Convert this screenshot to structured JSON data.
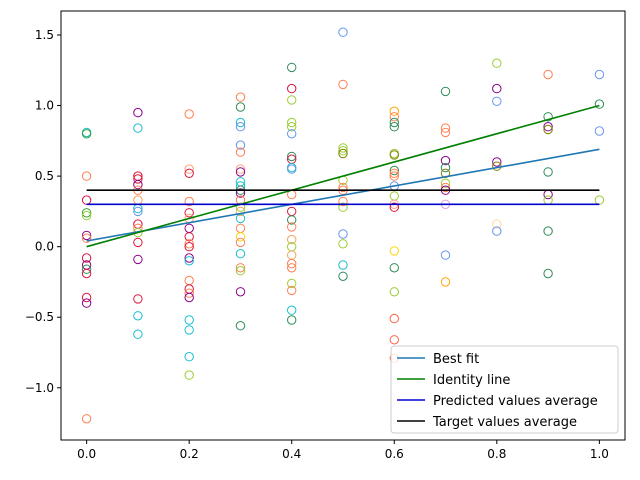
{
  "chart_data": {
    "type": "scatter",
    "xlim": [
      -0.05,
      1.05
    ],
    "ylim": [
      -1.37,
      1.67
    ],
    "x_ticks": [
      0.0,
      0.2,
      0.4,
      0.6,
      0.8,
      1.0
    ],
    "x_tick_labels": [
      "0.0",
      "0.2",
      "0.4",
      "0.6",
      "0.8",
      "1.0"
    ],
    "y_ticks": [
      -1.0,
      -0.5,
      0.0,
      0.5,
      1.0,
      1.5
    ],
    "y_tick_labels": [
      "−1.0",
      "−0.5",
      "0.0",
      "0.5",
      "1.0",
      "1.5"
    ],
    "grid": false,
    "legend_position": "lower-right",
    "scatter_points": [
      {
        "x": 0.0,
        "y": 0.81,
        "color": "#17becf"
      },
      {
        "x": 0.0,
        "y": 0.8,
        "color": "#2ca02c"
      },
      {
        "x": 0.0,
        "y": 0.5,
        "color": "#ff7f50"
      },
      {
        "x": 0.0,
        "y": 0.33,
        "color": "#dc143c"
      },
      {
        "x": 0.0,
        "y": 0.24,
        "color": "#2ca02c"
      },
      {
        "x": 0.0,
        "y": 0.22,
        "color": "#9acd32"
      },
      {
        "x": 0.0,
        "y": 0.08,
        "color": "#8b008b"
      },
      {
        "x": 0.0,
        "y": 0.06,
        "color": "#ff7f50"
      },
      {
        "x": 0.0,
        "y": -0.08,
        "color": "#dc143c"
      },
      {
        "x": 0.0,
        "y": -0.13,
        "color": "#8b008b"
      },
      {
        "x": 0.0,
        "y": -0.16,
        "color": "#2e8b57"
      },
      {
        "x": 0.0,
        "y": -0.19,
        "color": "#dc143c"
      },
      {
        "x": 0.0,
        "y": -0.36,
        "color": "#dc143c"
      },
      {
        "x": 0.0,
        "y": -0.4,
        "color": "#8b008b"
      },
      {
        "x": 0.0,
        "y": -1.22,
        "color": "#ff7f50"
      },
      {
        "x": 0.1,
        "y": 0.95,
        "color": "#8b008b"
      },
      {
        "x": 0.1,
        "y": 0.84,
        "color": "#17becf"
      },
      {
        "x": 0.1,
        "y": 0.5,
        "color": "#dc143c"
      },
      {
        "x": 0.1,
        "y": 0.48,
        "color": "#dc143c"
      },
      {
        "x": 0.1,
        "y": 0.44,
        "color": "#8b008b"
      },
      {
        "x": 0.1,
        "y": 0.4,
        "color": "#ff7f50"
      },
      {
        "x": 0.1,
        "y": 0.33,
        "color": "#f4a460"
      },
      {
        "x": 0.1,
        "y": 0.27,
        "color": "#17becf"
      },
      {
        "x": 0.1,
        "y": 0.25,
        "color": "#6495ed"
      },
      {
        "x": 0.1,
        "y": 0.16,
        "color": "#dc143c"
      },
      {
        "x": 0.1,
        "y": 0.13,
        "color": "#ff7f50"
      },
      {
        "x": 0.1,
        "y": 0.1,
        "color": "#9acd32"
      },
      {
        "x": 0.1,
        "y": 0.03,
        "color": "#dc143c"
      },
      {
        "x": 0.1,
        "y": -0.09,
        "color": "#8b008b"
      },
      {
        "x": 0.1,
        "y": -0.37,
        "color": "#dc143c"
      },
      {
        "x": 0.1,
        "y": -0.49,
        "color": "#17becf"
      },
      {
        "x": 0.1,
        "y": -0.62,
        "color": "#17becf"
      },
      {
        "x": 0.2,
        "y": 0.94,
        "color": "#ff7f50"
      },
      {
        "x": 0.2,
        "y": 0.55,
        "color": "#ffa07a"
      },
      {
        "x": 0.2,
        "y": 0.52,
        "color": "#dc143c"
      },
      {
        "x": 0.2,
        "y": 0.32,
        "color": "#ff7f50"
      },
      {
        "x": 0.2,
        "y": 0.24,
        "color": "#dc143c"
      },
      {
        "x": 0.2,
        "y": 0.2,
        "color": "#f4a460"
      },
      {
        "x": 0.2,
        "y": 0.13,
        "color": "#8b008b"
      },
      {
        "x": 0.2,
        "y": 0.07,
        "color": "#dc143c"
      },
      {
        "x": 0.2,
        "y": 0.02,
        "color": "#ff7f50"
      },
      {
        "x": 0.2,
        "y": 0.0,
        "color": "#dc143c"
      },
      {
        "x": 0.2,
        "y": -0.08,
        "color": "#8b008b"
      },
      {
        "x": 0.2,
        "y": -0.1,
        "color": "#17becf"
      },
      {
        "x": 0.2,
        "y": -0.24,
        "color": "#ff7f50"
      },
      {
        "x": 0.2,
        "y": -0.3,
        "color": "#dc143c"
      },
      {
        "x": 0.2,
        "y": -0.33,
        "color": "#ff7f50"
      },
      {
        "x": 0.2,
        "y": -0.36,
        "color": "#8b008b"
      },
      {
        "x": 0.2,
        "y": -0.52,
        "color": "#17becf"
      },
      {
        "x": 0.2,
        "y": -0.59,
        "color": "#17becf"
      },
      {
        "x": 0.2,
        "y": -0.78,
        "color": "#17becf"
      },
      {
        "x": 0.2,
        "y": -0.91,
        "color": "#9acd32"
      },
      {
        "x": 0.3,
        "y": 1.06,
        "color": "#ff7f50"
      },
      {
        "x": 0.3,
        "y": 0.99,
        "color": "#2e8b57"
      },
      {
        "x": 0.3,
        "y": 0.88,
        "color": "#17becf"
      },
      {
        "x": 0.3,
        "y": 0.85,
        "color": "#6495ed"
      },
      {
        "x": 0.3,
        "y": 0.72,
        "color": "#6495ed"
      },
      {
        "x": 0.3,
        "y": 0.67,
        "color": "#ff7f50"
      },
      {
        "x": 0.3,
        "y": 0.55,
        "color": "#ffa07a"
      },
      {
        "x": 0.3,
        "y": 0.53,
        "color": "#8b008b"
      },
      {
        "x": 0.3,
        "y": 0.46,
        "color": "#17becf"
      },
      {
        "x": 0.3,
        "y": 0.43,
        "color": "#17becf"
      },
      {
        "x": 0.3,
        "y": 0.4,
        "color": "#2e8b57"
      },
      {
        "x": 0.3,
        "y": 0.38,
        "color": "#8b008b"
      },
      {
        "x": 0.3,
        "y": 0.33,
        "color": "#ff7f50"
      },
      {
        "x": 0.3,
        "y": 0.28,
        "color": "#9acd32"
      },
      {
        "x": 0.3,
        "y": 0.25,
        "color": "#f4a460"
      },
      {
        "x": 0.3,
        "y": 0.2,
        "color": "#17becf"
      },
      {
        "x": 0.3,
        "y": 0.13,
        "color": "#ff7f50"
      },
      {
        "x": 0.3,
        "y": 0.07,
        "color": "#ffd700"
      },
      {
        "x": 0.3,
        "y": 0.03,
        "color": "#ff7f50"
      },
      {
        "x": 0.3,
        "y": -0.05,
        "color": "#17becf"
      },
      {
        "x": 0.3,
        "y": -0.15,
        "color": "#ff7f50"
      },
      {
        "x": 0.3,
        "y": -0.17,
        "color": "#9acd32"
      },
      {
        "x": 0.3,
        "y": -0.32,
        "color": "#8b008b"
      },
      {
        "x": 0.3,
        "y": -0.56,
        "color": "#2e8b57"
      },
      {
        "x": 0.4,
        "y": 1.27,
        "color": "#2e8b57"
      },
      {
        "x": 0.4,
        "y": 1.12,
        "color": "#dc143c"
      },
      {
        "x": 0.4,
        "y": 1.04,
        "color": "#9acd32"
      },
      {
        "x": 0.4,
        "y": 0.88,
        "color": "#9acd32"
      },
      {
        "x": 0.4,
        "y": 0.85,
        "color": "#9acd32"
      },
      {
        "x": 0.4,
        "y": 0.8,
        "color": "#6495ed"
      },
      {
        "x": 0.4,
        "y": 0.64,
        "color": "#2e8b57"
      },
      {
        "x": 0.4,
        "y": 0.62,
        "color": "#dc143c"
      },
      {
        "x": 0.4,
        "y": 0.56,
        "color": "#17becf"
      },
      {
        "x": 0.4,
        "y": 0.55,
        "color": "#6495ed"
      },
      {
        "x": 0.4,
        "y": 0.37,
        "color": "#ff7f50"
      },
      {
        "x": 0.4,
        "y": 0.25,
        "color": "#dc143c"
      },
      {
        "x": 0.4,
        "y": 0.19,
        "color": "#2e8b57"
      },
      {
        "x": 0.4,
        "y": 0.14,
        "color": "#ff7f50"
      },
      {
        "x": 0.4,
        "y": 0.05,
        "color": "#f4a460"
      },
      {
        "x": 0.4,
        "y": 0.0,
        "color": "#9acd32"
      },
      {
        "x": 0.4,
        "y": -0.06,
        "color": "#f4a460"
      },
      {
        "x": 0.4,
        "y": -0.12,
        "color": "#ff7f50"
      },
      {
        "x": 0.4,
        "y": -0.15,
        "color": "#ff7f50"
      },
      {
        "x": 0.4,
        "y": -0.26,
        "color": "#9acd32"
      },
      {
        "x": 0.4,
        "y": -0.31,
        "color": "#ff7f50"
      },
      {
        "x": 0.4,
        "y": -0.45,
        "color": "#17becf"
      },
      {
        "x": 0.4,
        "y": -0.52,
        "color": "#2e8b57"
      },
      {
        "x": 0.5,
        "y": 1.52,
        "color": "#6495ed"
      },
      {
        "x": 0.5,
        "y": 1.15,
        "color": "#ff7f50"
      },
      {
        "x": 0.5,
        "y": 0.7,
        "color": "#9acd32"
      },
      {
        "x": 0.5,
        "y": 0.68,
        "color": "#9acd32"
      },
      {
        "x": 0.5,
        "y": 0.66,
        "color": "#808000"
      },
      {
        "x": 0.5,
        "y": 0.47,
        "color": "#9acd32"
      },
      {
        "x": 0.5,
        "y": 0.42,
        "color": "#ff7f50"
      },
      {
        "x": 0.5,
        "y": 0.4,
        "color": "#ff7f50"
      },
      {
        "x": 0.5,
        "y": 0.32,
        "color": "#ff7f50"
      },
      {
        "x": 0.5,
        "y": 0.28,
        "color": "#9acd32"
      },
      {
        "x": 0.5,
        "y": 0.09,
        "color": "#6495ed"
      },
      {
        "x": 0.5,
        "y": 0.02,
        "color": "#9acd32"
      },
      {
        "x": 0.5,
        "y": -0.13,
        "color": "#17becf"
      },
      {
        "x": 0.5,
        "y": -0.21,
        "color": "#2e8b57"
      },
      {
        "x": 0.6,
        "y": 0.96,
        "color": "#ffa500"
      },
      {
        "x": 0.6,
        "y": 0.92,
        "color": "#ff7f50"
      },
      {
        "x": 0.6,
        "y": 0.88,
        "color": "#2e8b57"
      },
      {
        "x": 0.6,
        "y": 0.85,
        "color": "#2e8b57"
      },
      {
        "x": 0.6,
        "y": 0.66,
        "color": "#9acd32"
      },
      {
        "x": 0.6,
        "y": 0.65,
        "color": "#808000"
      },
      {
        "x": 0.6,
        "y": 0.54,
        "color": "#2e8b57"
      },
      {
        "x": 0.6,
        "y": 0.52,
        "color": "#ff7f50"
      },
      {
        "x": 0.6,
        "y": 0.5,
        "color": "#ff7f50"
      },
      {
        "x": 0.6,
        "y": 0.43,
        "color": "#6495ed"
      },
      {
        "x": 0.6,
        "y": 0.36,
        "color": "#9acd32"
      },
      {
        "x": 0.6,
        "y": 0.3,
        "color": "#ffa07a"
      },
      {
        "x": 0.6,
        "y": 0.28,
        "color": "#dc143c"
      },
      {
        "x": 0.6,
        "y": -0.03,
        "color": "#ffd700"
      },
      {
        "x": 0.6,
        "y": -0.15,
        "color": "#2e8b57"
      },
      {
        "x": 0.6,
        "y": -0.32,
        "color": "#9acd32"
      },
      {
        "x": 0.6,
        "y": -0.51,
        "color": "#ff6347"
      },
      {
        "x": 0.6,
        "y": -0.66,
        "color": "#ff6347"
      },
      {
        "x": 0.6,
        "y": -0.79,
        "color": "#ff6347"
      },
      {
        "x": 0.7,
        "y": 1.1,
        "color": "#2e8b57"
      },
      {
        "x": 0.7,
        "y": 0.84,
        "color": "#ff7f50"
      },
      {
        "x": 0.7,
        "y": 0.81,
        "color": "#ff7f50"
      },
      {
        "x": 0.7,
        "y": 0.61,
        "color": "#8b008b"
      },
      {
        "x": 0.7,
        "y": 0.56,
        "color": "#2e8b57"
      },
      {
        "x": 0.7,
        "y": 0.52,
        "color": "#808000"
      },
      {
        "x": 0.7,
        "y": 0.45,
        "color": "#9acd32"
      },
      {
        "x": 0.7,
        "y": 0.42,
        "color": "#ff7f50"
      },
      {
        "x": 0.7,
        "y": 0.4,
        "color": "#8b008b"
      },
      {
        "x": 0.7,
        "y": 0.3,
        "color": "#dda0dd"
      },
      {
        "x": 0.7,
        "y": -0.06,
        "color": "#6495ed"
      },
      {
        "x": 0.7,
        "y": -0.25,
        "color": "#ffa500"
      },
      {
        "x": 0.8,
        "y": 1.3,
        "color": "#9acd32"
      },
      {
        "x": 0.8,
        "y": 1.12,
        "color": "#8b008b"
      },
      {
        "x": 0.8,
        "y": 1.03,
        "color": "#6495ed"
      },
      {
        "x": 0.8,
        "y": 0.6,
        "color": "#8b008b"
      },
      {
        "x": 0.8,
        "y": 0.57,
        "color": "#808000"
      },
      {
        "x": 0.8,
        "y": 0.16,
        "color": "#ffd7a0"
      },
      {
        "x": 0.8,
        "y": 0.11,
        "color": "#6495ed"
      },
      {
        "x": 0.9,
        "y": 1.22,
        "color": "#ff7f50"
      },
      {
        "x": 0.9,
        "y": 0.92,
        "color": "#2e8b57"
      },
      {
        "x": 0.9,
        "y": 0.85,
        "color": "#8b008b"
      },
      {
        "x": 0.9,
        "y": 0.83,
        "color": "#808000"
      },
      {
        "x": 0.9,
        "y": 0.53,
        "color": "#2e8b57"
      },
      {
        "x": 0.9,
        "y": 0.37,
        "color": "#8b008b"
      },
      {
        "x": 0.9,
        "y": 0.33,
        "color": "#9acd32"
      },
      {
        "x": 0.9,
        "y": 0.11,
        "color": "#2e8b57"
      },
      {
        "x": 0.9,
        "y": -0.19,
        "color": "#2e8b57"
      },
      {
        "x": 1.0,
        "y": 1.22,
        "color": "#6495ed"
      },
      {
        "x": 1.0,
        "y": 1.01,
        "color": "#2e8b57"
      },
      {
        "x": 1.0,
        "y": 0.82,
        "color": "#6495ed"
      },
      {
        "x": 1.0,
        "y": 0.33,
        "color": "#9acd32"
      }
    ],
    "lines": [
      {
        "name": "Best fit",
        "color": "#1f77b4",
        "x": [
          0.0,
          1.0
        ],
        "y": [
          0.04,
          0.69
        ]
      },
      {
        "name": "Identity line",
        "color": "#008000",
        "x": [
          0.0,
          1.0
        ],
        "y": [
          0.0,
          1.0
        ]
      },
      {
        "name": "Predicted values average",
        "color": "#0000cd",
        "x": [
          0.0,
          1.0
        ],
        "y": [
          0.3,
          0.3
        ]
      },
      {
        "name": "Target values average",
        "color": "#000000",
        "x": [
          0.0,
          1.0
        ],
        "y": [
          0.4,
          0.4
        ]
      }
    ]
  }
}
